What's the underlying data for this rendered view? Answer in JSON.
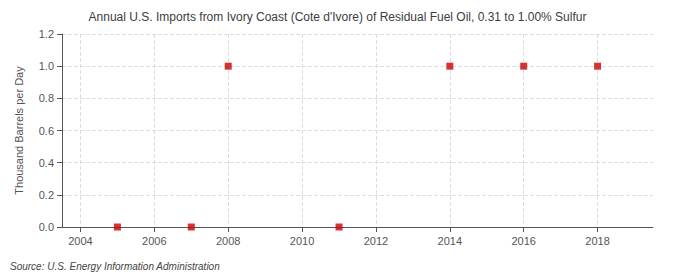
{
  "chart_data": {
    "type": "scatter",
    "title": "Annual U.S. Imports from Ivory Coast (Cote d'Ivore) of Residual Fuel Oil, 0.31 to 1.00% Sulfur",
    "ylabel": "Thousand Barrels per Day",
    "annotations": [
      "Source: U.S. Energy Information Administration"
    ],
    "x": [
      2005,
      2007,
      2008,
      2011,
      2014,
      2016,
      2018
    ],
    "values": [
      0.0,
      0.0,
      1.0,
      0.0,
      1.0,
      1.0,
      1.0
    ],
    "color": "#cc0000",
    "marker": "square",
    "xlim": [
      2003.5,
      2019.5
    ],
    "xticks": [
      2004,
      2006,
      2008,
      2010,
      2012,
      2014,
      2016,
      2018
    ],
    "ylim": [
      0.0,
      1.2
    ],
    "yticks": [
      {
        "value": 0,
        "label": "0.0"
      },
      0.2,
      0.4,
      0.6,
      0.8,
      {
        "value": 1,
        "label": "1.0"
      },
      1.2
    ],
    "grid": true
  }
}
